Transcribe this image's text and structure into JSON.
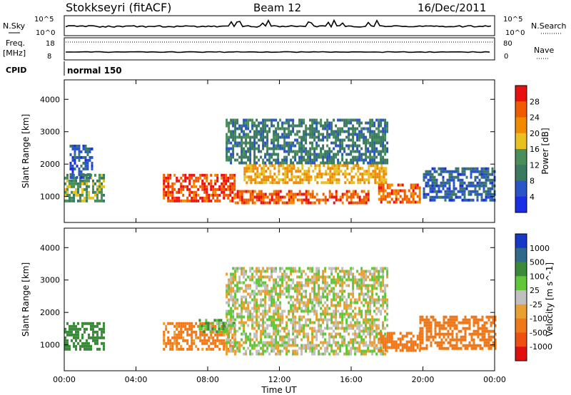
{
  "header": {
    "station": "Stokkseyri (fitACF)",
    "beam": "Beam 12",
    "date": "16/Dec/2011"
  },
  "params": {
    "nsky_label": "N.Sky",
    "nsearch_label": "N.Search",
    "freq_label_1": "Freq.",
    "freq_label_2": "[MHz]",
    "nave_label": "Nave",
    "cpid_label": "CPID",
    "cpid_value": "normal 150",
    "noise_ticks": [
      "10^5",
      "10^0"
    ],
    "freq_ticks": [
      "18",
      "8"
    ],
    "nave_ticks": [
      "80",
      "0"
    ]
  },
  "colors": {
    "power_scale": [
      "#1a2ee6",
      "#2a55c8",
      "#3a7a60",
      "#4a8f5a",
      "#e8c020",
      "#f08a00",
      "#f05a00",
      "#e81010"
    ],
    "velocity_scale": [
      "#1838c8",
      "#2f6a8a",
      "#3a8a3a",
      "#60c838",
      "#c0c0c0",
      "#e8a030",
      "#f07818",
      "#ee5010",
      "#e01010"
    ]
  },
  "chart_data": [
    {
      "type": "heatmap",
      "name": "power",
      "xlabel": "",
      "ylabel": "Slant Range [km]",
      "x_ticks": [
        "00:00",
        "04:00",
        "08:00",
        "12:00",
        "16:00",
        "20:00",
        "00:00"
      ],
      "y_ticks": [
        1000,
        2000,
        3000,
        4000
      ],
      "ylim": [
        200,
        4600
      ],
      "xlim_hours": [
        0,
        24
      ],
      "colorbar_label": "Power [dB]",
      "colorbar_ticks": [
        4,
        8,
        12,
        16,
        20,
        24,
        28
      ],
      "regions": [
        {
          "t0": 0.0,
          "t1": 2.2,
          "r0": 900,
          "r1": 1700,
          "value": 14
        },
        {
          "t0": 0.3,
          "t1": 1.5,
          "r0": 1600,
          "r1": 2600,
          "value": 6
        },
        {
          "t0": 5.5,
          "t1": 9.5,
          "r0": 900,
          "r1": 1700,
          "value": 27
        },
        {
          "t0": 9.5,
          "t1": 17.0,
          "r0": 800,
          "r1": 1200,
          "value": 26
        },
        {
          "t0": 10.0,
          "t1": 18.0,
          "r0": 1400,
          "r1": 2000,
          "value": 20
        },
        {
          "t0": 9.0,
          "t1": 18.0,
          "r0": 2000,
          "r1": 3400,
          "value": 10
        },
        {
          "t0": 17.5,
          "t1": 19.8,
          "r0": 800,
          "r1": 1400,
          "value": 25
        },
        {
          "t0": 20.0,
          "t1": 24.0,
          "r0": 900,
          "r1": 1900,
          "value": 7
        }
      ]
    },
    {
      "type": "heatmap",
      "name": "velocity",
      "xlabel": "Time UT",
      "ylabel": "Slant Range [km]",
      "x_ticks": [
        "00:00",
        "04:00",
        "08:00",
        "12:00",
        "16:00",
        "20:00",
        "00:00"
      ],
      "y_ticks": [
        1000,
        2000,
        3000,
        4000
      ],
      "ylim": [
        200,
        4600
      ],
      "xlim_hours": [
        0,
        24
      ],
      "colorbar_label": "Velocity [m s^-1]",
      "colorbar_ticks": [
        1000,
        500,
        100,
        25,
        -25,
        -100,
        -500,
        -1000
      ],
      "regions": [
        {
          "t0": 0.0,
          "t1": 2.2,
          "r0": 900,
          "r1": 1700,
          "value": 200
        },
        {
          "t0": 5.5,
          "t1": 9.5,
          "r0": 900,
          "r1": 1700,
          "value": -150
        },
        {
          "t0": 7.5,
          "t1": 9.5,
          "r0": 1400,
          "r1": 1800,
          "value": 80
        },
        {
          "t0": 9.0,
          "t1": 18.0,
          "r0": 700,
          "r1": 3400,
          "value": 0
        },
        {
          "t0": 17.5,
          "t1": 19.8,
          "r0": 800,
          "r1": 1400,
          "value": -300
        },
        {
          "t0": 19.8,
          "t1": 24.0,
          "r0": 900,
          "r1": 1900,
          "value": -400
        }
      ]
    }
  ]
}
